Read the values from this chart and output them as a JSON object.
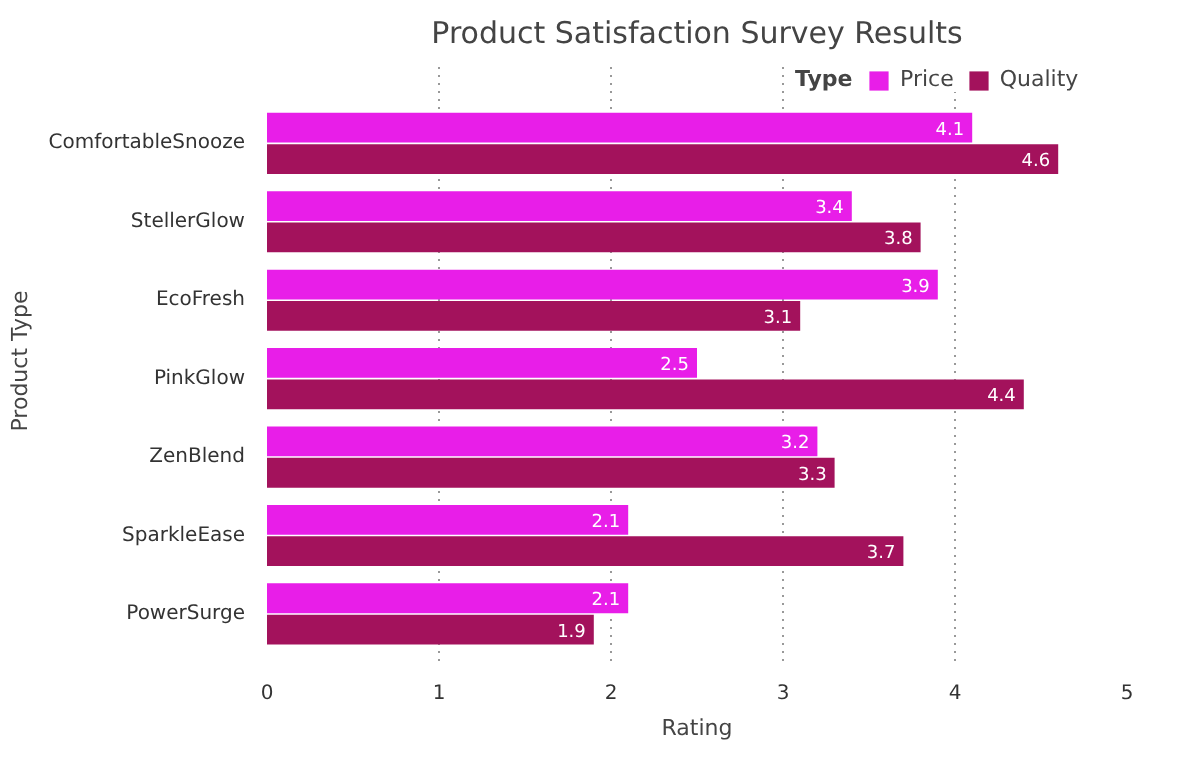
{
  "chart_data": {
    "type": "bar",
    "orientation": "horizontal",
    "title": "Product Satisfaction Survey Results",
    "xlabel": "Rating",
    "ylabel": "Product Type",
    "legend_title": "Type",
    "legend": "top right",
    "grid": "x",
    "data_labels": true,
    "categories": [
      "ComfortableSnooze",
      "StellerGlow",
      "EcoFresh",
      "PinkGlow",
      "ZenBlend",
      "SparkleEase",
      "PowerSurge"
    ],
    "series": [
      {
        "name": "Price",
        "color": "#e81ee8",
        "values": [
          4.1,
          3.4,
          3.9,
          2.5,
          3.2,
          2.1,
          2.1
        ]
      },
      {
        "name": "Quality",
        "color": "#a3125c",
        "values": [
          4.6,
          3.8,
          3.1,
          4.4,
          3.3,
          3.7,
          1.9
        ]
      }
    ],
    "xlim": [
      0,
      5
    ],
    "xticks": [
      0,
      1,
      2,
      3,
      4,
      5
    ]
  }
}
